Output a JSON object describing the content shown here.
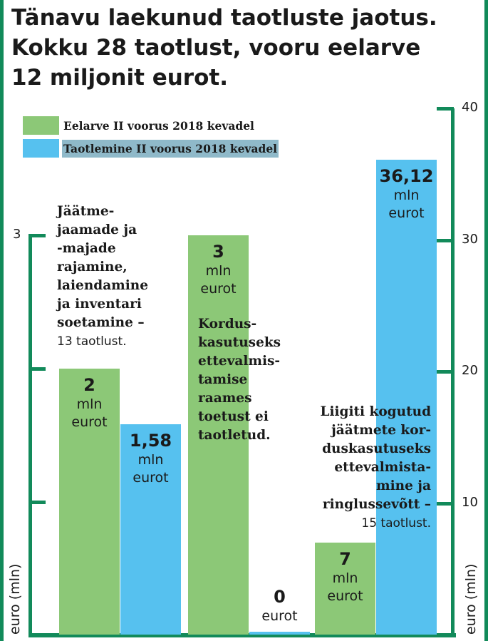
{
  "title": [
    "Tänavu laekunud taotluste jaotus.",
    "Kokku 28 taotlust, vooru eelarve",
    "12 miljonit eurot."
  ],
  "colors": {
    "budget": "#8cc877",
    "applied": "#56c1ef",
    "axis": "#128a5a",
    "legend_highlight": "#8fb9c9"
  },
  "legend": [
    {
      "key": "budget",
      "label": "Eelarve II voorus 2018 kevadel"
    },
    {
      "key": "applied",
      "label": "Taotlemine II voorus 2018 kevadel"
    }
  ],
  "notes": [
    {
      "lines": [
        "Jäätme-",
        "jaamade ja",
        "-majade",
        "rajamine,",
        "laiendamine",
        "ja inventari",
        "soetamine –"
      ],
      "sub": "13 taotlust."
    },
    {
      "lines": [
        "Kordus-",
        "kasutuseks",
        "ettevalmis-",
        "tamise",
        "raames",
        "toetust ei",
        "taotletud."
      ],
      "sub": ""
    },
    {
      "lines": [
        "Liigiti kogutud",
        "jäätmete kor-",
        "duskasutuseks",
        "ettevalmista-",
        "mine ja",
        "ringlussevõtt –"
      ],
      "sub": "15 taotlust."
    }
  ],
  "chart_data": {
    "type": "bar",
    "axis_title": "euro (mln)",
    "left_axis": {
      "ticks": [
        3
      ],
      "ylim": [
        0,
        3
      ]
    },
    "right_axis": {
      "ticks": [
        10,
        20,
        30,
        40
      ],
      "ylim": [
        0,
        40
      ]
    },
    "groups": [
      {
        "axis": "left",
        "bars": [
          {
            "series": "budget",
            "value": 2,
            "num": "2",
            "unit": [
              "mln",
              "eurot"
            ]
          },
          {
            "series": "applied",
            "value": 1.58,
            "num": "1,58",
            "unit": [
              "mln",
              "eurot"
            ]
          }
        ]
      },
      {
        "axis": "left",
        "bars": [
          {
            "series": "budget",
            "value": 3,
            "num": "3",
            "unit": [
              "mln",
              "eurot"
            ]
          },
          {
            "series": "applied",
            "value": 0,
            "num": "0",
            "unit": [
              "eurot"
            ]
          }
        ]
      },
      {
        "axis": "right",
        "bars": [
          {
            "series": "budget",
            "value": 7,
            "num": "7",
            "unit": [
              "mln",
              "eurot"
            ]
          },
          {
            "series": "applied",
            "value": 36.12,
            "num": "36,12",
            "unit": [
              "mln",
              "eurot"
            ]
          }
        ]
      }
    ]
  }
}
